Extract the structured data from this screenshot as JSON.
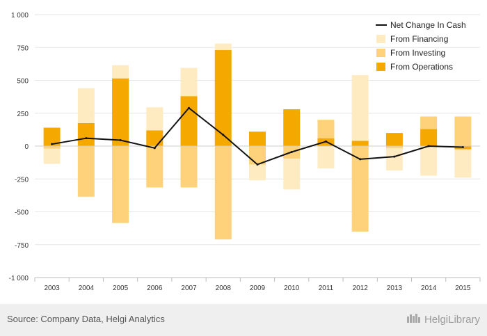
{
  "chart_data": {
    "type": "bar",
    "stacked": true,
    "categories": [
      "2003",
      "2004",
      "2005",
      "2006",
      "2007",
      "2008",
      "2009",
      "2010",
      "2011",
      "2012",
      "2013",
      "2014",
      "2015"
    ],
    "ylim": [
      -1000,
      1000
    ],
    "yticks": [
      1000,
      750,
      500,
      250,
      0,
      -250,
      -500,
      -750,
      -1000
    ],
    "ytick_labels": [
      "1 000",
      "750",
      "500",
      "250",
      "0",
      "-250",
      "-500",
      "-750",
      "-1 000"
    ],
    "grid": true,
    "legend_position": "top-right",
    "series": [
      {
        "name": "From Operations",
        "kind": "bar",
        "color": "#f5a800",
        "values": [
          140,
          175,
          515,
          120,
          380,
          730,
          110,
          280,
          60,
          40,
          100,
          130,
          -25
        ]
      },
      {
        "name": "From Investing",
        "kind": "bar",
        "color": "#fdd27a",
        "values": [
          -20,
          -385,
          -585,
          -315,
          -315,
          -710,
          -140,
          -95,
          140,
          -650,
          -15,
          95,
          225
        ]
      },
      {
        "name": "From Financing",
        "kind": "bar",
        "color": "#ffebc2",
        "values": [
          -115,
          265,
          100,
          175,
          215,
          50,
          -120,
          -235,
          -170,
          500,
          -170,
          -225,
          -215
        ]
      },
      {
        "name": "Net Change In Cash",
        "kind": "line",
        "color": "#111111",
        "values": [
          15,
          60,
          45,
          -15,
          290,
          85,
          -140,
          -45,
          35,
          -100,
          -80,
          0,
          -8
        ]
      }
    ]
  },
  "footer": {
    "source": "Source: Company Data, Helgi Analytics",
    "logo_text": "HelgiLibrary"
  }
}
